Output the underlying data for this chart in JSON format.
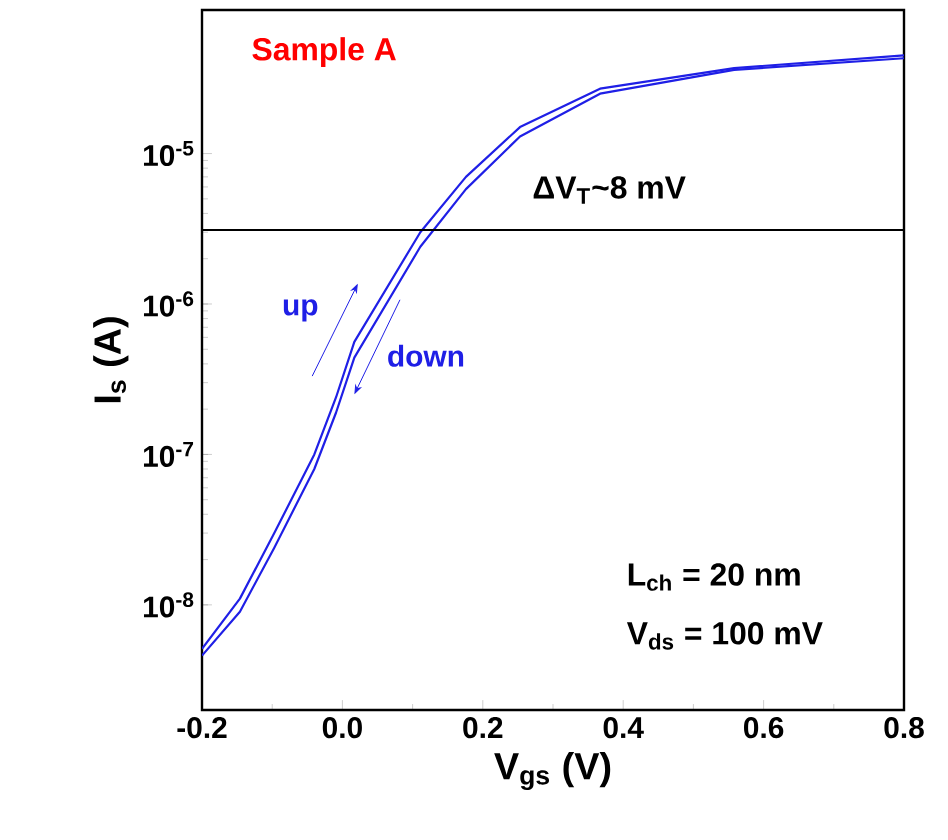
{
  "chart_data": {
    "type": "line",
    "xlabel": "V$_{gs}$ (V)",
    "ylabel": "I$_{s}$ (A)",
    "log": "y",
    "x": [
      -0.2,
      -0.146,
      -0.097,
      -0.04,
      -0.009,
      0.017,
      0.111,
      0.176,
      0.253,
      0.367,
      0.558,
      0.8
    ],
    "series": [
      {
        "name": "up",
        "color": "#1f1fe6",
        "values": [
          5.1e-09,
          1.1e-08,
          3e-08,
          1e-07,
          2.4e-07,
          5.6e-07,
          3e-06,
          7e-06,
          1.5e-05,
          2.7e-05,
          3.7e-05,
          4.5e-05
        ]
      },
      {
        "name": "down",
        "color": "#1f1fe6",
        "values": [
          4.6e-09,
          9e-09,
          2.4e-08,
          8e-08,
          1.9e-07,
          4.4e-07,
          2.4e-06,
          5.8e-06,
          1.3e-05,
          2.5e-05,
          3.6e-05,
          4.3e-05
        ]
      }
    ],
    "xlim": [
      -0.2,
      0.8
    ],
    "ylim": [
      2e-09,
      9e-05
    ],
    "xticks": [
      {
        "value": -0.2,
        "label": "-0.2"
      },
      {
        "value": 0,
        "label": "0.0"
      },
      {
        "value": 0.2,
        "label": "0.2"
      },
      {
        "value": 0.4,
        "label": "0.4"
      },
      {
        "value": 0.6,
        "label": "0.6"
      },
      {
        "value": 0.8,
        "label": "0.8"
      }
    ],
    "yticks": [
      {
        "value": 1e-08,
        "label": "10$^{-8}$"
      },
      {
        "value": 1e-07,
        "label": "10$^{-7}$"
      },
      {
        "value": 1e-06,
        "label": "10$^{-6}$"
      },
      {
        "value": 1e-05,
        "label": "10$^{-5}$"
      }
    ],
    "ref_lines": [
      {
        "axis": "y",
        "value": 3.1e-06,
        "color": "#000000"
      }
    ],
    "annotations": [
      "Sample A",
      "ΔV$_{T}$~8 mV",
      "L$_{ch}$ = 20 nm",
      "V$_{ds}$ = 100 mV"
    ],
    "grid": false,
    "legend": false,
    "marker": "none",
    "line_style": "solid"
  }
}
